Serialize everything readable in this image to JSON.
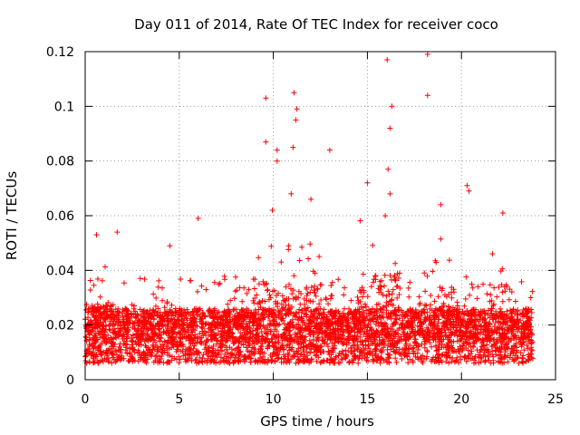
{
  "chart_data": {
    "type": "scatter",
    "title": "Day 011 of 2014, Rate Of TEC Index for receiver coco",
    "xlabel": "GPS time / hours",
    "ylabel": "ROTI / TECUs",
    "xlim": [
      0,
      25
    ],
    "ylim": [
      0,
      0.12
    ],
    "x_ticks": [
      0,
      5,
      10,
      15,
      20,
      25
    ],
    "x_tick_labels": [
      "0",
      "5",
      "10",
      "15",
      "20",
      "25"
    ],
    "y_ticks": [
      0,
      0.02,
      0.04,
      0.06,
      0.08,
      0.1,
      0.12
    ],
    "y_tick_labels": [
      "0",
      "0.02",
      "0.04",
      "0.06",
      "0.08",
      "0.1",
      "0.12"
    ],
    "grid": true,
    "marker": "+",
    "color": "#ff0000",
    "data_coverage_hours": [
      0,
      23.8
    ],
    "dense_band": [
      0.005,
      0.03
    ],
    "notable_points": [
      {
        "x": 18.2,
        "y": 0.119
      },
      {
        "x": 16.05,
        "y": 0.117
      },
      {
        "x": 11.1,
        "y": 0.105
      },
      {
        "x": 9.6,
        "y": 0.103
      },
      {
        "x": 18.2,
        "y": 0.104
      },
      {
        "x": 16.3,
        "y": 0.1
      },
      {
        "x": 11.25,
        "y": 0.099
      },
      {
        "x": 11.2,
        "y": 0.095
      },
      {
        "x": 16.2,
        "y": 0.092
      },
      {
        "x": 9.6,
        "y": 0.087
      },
      {
        "x": 11.05,
        "y": 0.085
      },
      {
        "x": 10.2,
        "y": 0.084
      },
      {
        "x": 13.0,
        "y": 0.084
      },
      {
        "x": 10.2,
        "y": 0.08
      },
      {
        "x": 16.1,
        "y": 0.077
      },
      {
        "x": 15.0,
        "y": 0.072
      },
      {
        "x": 20.3,
        "y": 0.071
      },
      {
        "x": 16.2,
        "y": 0.068
      },
      {
        "x": 10.95,
        "y": 0.068
      },
      {
        "x": 20.4,
        "y": 0.069
      },
      {
        "x": 12.0,
        "y": 0.066
      },
      {
        "x": 18.9,
        "y": 0.064
      },
      {
        "x": 22.2,
        "y": 0.061
      },
      {
        "x": 6.0,
        "y": 0.059
      },
      {
        "x": 9.95,
        "y": 0.062
      },
      {
        "x": 0.6,
        "y": 0.053
      },
      {
        "x": 1.7,
        "y": 0.054
      },
      {
        "x": 4.5,
        "y": 0.049
      }
    ]
  }
}
